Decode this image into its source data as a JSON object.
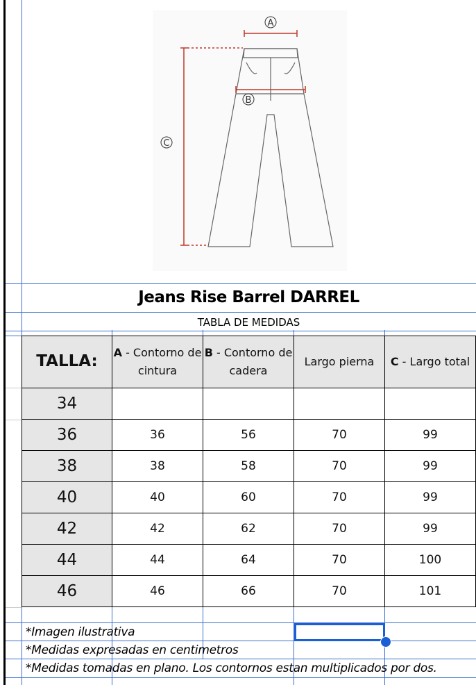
{
  "diagram": {
    "labels": [
      "A",
      "B",
      "C"
    ]
  },
  "title": "Jeans Rise Barrel DARREL",
  "subtitle": "TABLA DE MEDIDAS",
  "table": {
    "headers": [
      {
        "bold": "TALLA:",
        "rest": ""
      },
      {
        "bold": "A",
        "rest": " - Contorno de cintura"
      },
      {
        "bold": "B",
        "rest": " - Contorno de cadera"
      },
      {
        "bold": "",
        "rest": "Largo pierna"
      },
      {
        "bold": "C",
        "rest": " - Largo total"
      }
    ],
    "rows": [
      [
        "34",
        "",
        "",
        "",
        ""
      ],
      [
        "36",
        "36",
        "56",
        "70",
        "99"
      ],
      [
        "38",
        "38",
        "58",
        "70",
        "99"
      ],
      [
        "40",
        "40",
        "60",
        "70",
        "99"
      ],
      [
        "42",
        "42",
        "62",
        "70",
        "99"
      ],
      [
        "44",
        "44",
        "64",
        "70",
        "100"
      ],
      [
        "46",
        "46",
        "66",
        "70",
        "101"
      ]
    ]
  },
  "notes": [
    "*Imagen ilustrativa",
    "*Medidas expresadas en centimetros",
    "*Medidas tomadas en plano. Los contornos estan multiplicados por dos."
  ],
  "colors": {
    "gridline": "#3c6fcf",
    "selection": "#1a5fd6",
    "measure": "#c0392b",
    "header_bg": "#e6e6e6"
  }
}
